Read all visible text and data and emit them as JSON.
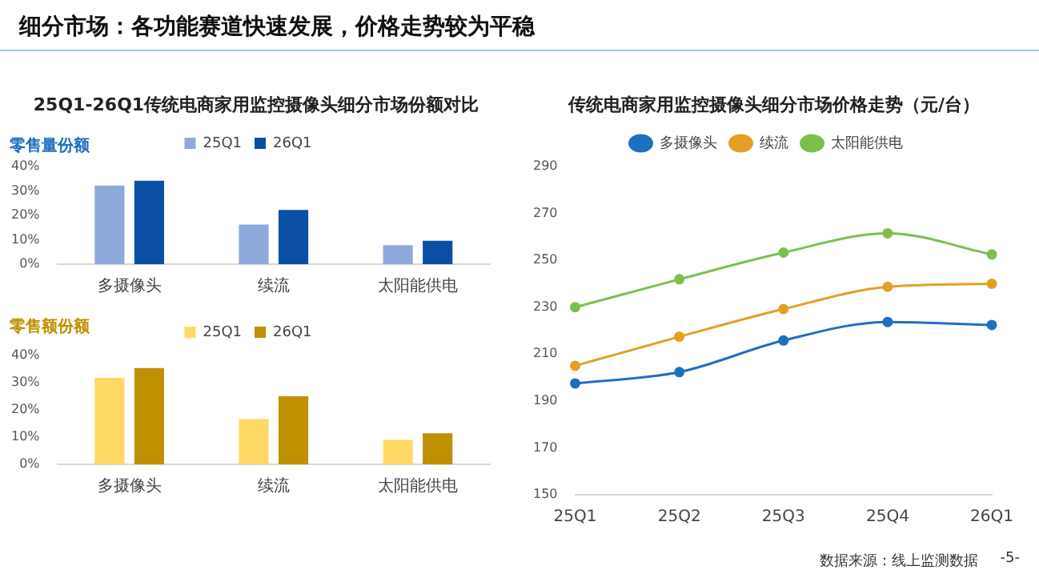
{
  "chart_data": [
    {
      "type": "other",
      "title": "细分市场：各功能赛道快速发展，价格走势较为平稳",
      "annotations": [
        "数据来源：线上监测数据",
        "-5-"
      ]
    },
    {
      "type": "bar",
      "title": "25Q1-26Q1传统电商家用监控摄像头细分市场份额对比",
      "ylabel": "零售量份额",
      "categories": [
        "多摄像头",
        "续流",
        "太阳能供电"
      ],
      "series": [
        {
          "name": "25Q1",
          "color": "#8eaadb",
          "values": [
            32.2,
            16.2,
            7.8
          ]
        },
        {
          "name": "26Q1",
          "color": "#0a4fa3",
          "values": [
            34.2,
            22.2,
            9.6
          ]
        }
      ],
      "ylim": [
        0,
        40
      ],
      "yticks": [
        {
          "value": 0,
          "label": "0%"
        },
        {
          "value": 10,
          "label": "10%"
        },
        {
          "value": 20,
          "label": "20%"
        },
        {
          "value": 30,
          "label": "30%"
        },
        {
          "value": 40,
          "label": "40%"
        }
      ],
      "legend": "top"
    },
    {
      "type": "bar",
      "ylabel": "零售额份额",
      "categories": [
        "多摄像头",
        "续流",
        "太阳能供电"
      ],
      "series": [
        {
          "name": "25Q1",
          "color": "#ffd966",
          "values": [
            31.8,
            16.6,
            9
          ]
        },
        {
          "name": "26Q1",
          "color": "#bf9000",
          "values": [
            35.4,
            25,
            11.4
          ]
        }
      ],
      "ylim": [
        0,
        40
      ],
      "yticks": [
        {
          "value": 0,
          "label": "0%"
        },
        {
          "value": 10,
          "label": "10%"
        },
        {
          "value": 20,
          "label": "20%"
        },
        {
          "value": 30,
          "label": "30%"
        },
        {
          "value": 40,
          "label": "40%"
        }
      ],
      "legend": "top"
    },
    {
      "type": "line",
      "title": "传统电商家用监控摄像头细分市场价格走势（元/台）",
      "categories": [
        "25Q1",
        "25Q2",
        "25Q3",
        "25Q4",
        "26Q1"
      ],
      "series": [
        {
          "name": "多摄像头",
          "color": "#1f6fc0",
          "values": [
            197.5,
            202.3,
            215.8,
            223.7,
            222.4
          ]
        },
        {
          "name": "续流",
          "color": "#e3a024",
          "values": [
            205,
            217.4,
            229.2,
            238.7,
            240
          ]
        },
        {
          "name": "太阳能供电",
          "color": "#7cbf4f",
          "values": [
            230,
            241.9,
            253.3,
            261.5,
            252.5
          ]
        }
      ],
      "ylim": [
        150,
        290
      ],
      "yticks": [
        150,
        170,
        190,
        210,
        230,
        250,
        270,
        290
      ],
      "legend": "top",
      "marker": "circle"
    }
  ]
}
